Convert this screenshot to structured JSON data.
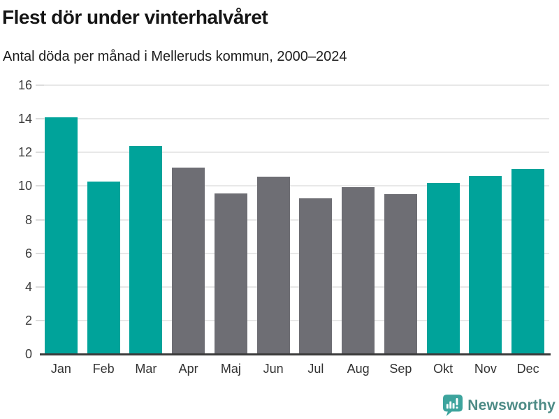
{
  "header": {
    "title": "Flest dör under vinterhalvåret",
    "subtitle": "Antal döda per månad i Melleruds kommun, 2000–2024"
  },
  "chart_data": {
    "type": "bar",
    "title": "Flest dör under vinterhalvåret",
    "subtitle": "Antal döda per månad i Melleruds kommun, 2000–2024",
    "categories": [
      "Jan",
      "Feb",
      "Mar",
      "Apr",
      "Maj",
      "Jun",
      "Jul",
      "Aug",
      "Sep",
      "Okt",
      "Nov",
      "Dec"
    ],
    "values": [
      14.1,
      10.25,
      12.4,
      11.1,
      9.55,
      10.55,
      9.25,
      9.95,
      9.5,
      10.2,
      10.6,
      11.0
    ],
    "bar_colors": [
      "#00a39a",
      "#00a39a",
      "#00a39a",
      "#6e6e74",
      "#6e6e74",
      "#6e6e74",
      "#6e6e74",
      "#6e6e74",
      "#6e6e74",
      "#00a39a",
      "#00a39a",
      "#00a39a"
    ],
    "palette": {
      "winter_teal": "#00a39a",
      "summer_gray": "#6e6e74"
    },
    "xlabel": "",
    "ylabel": "",
    "ylim": [
      0,
      16
    ],
    "yticks": [
      0,
      2,
      4,
      6,
      8,
      10,
      12,
      14,
      16
    ],
    "grid": true,
    "legend": "none",
    "gridline_color": "#e8e8e8",
    "axis_line_color": "#3b3b3b"
  },
  "footer": {
    "brand": "Newsworthy",
    "brand_color": "#4d8b86",
    "icon": "newsworthy-speech-bubble-chart-icon",
    "icon_color": "#3da49d"
  }
}
